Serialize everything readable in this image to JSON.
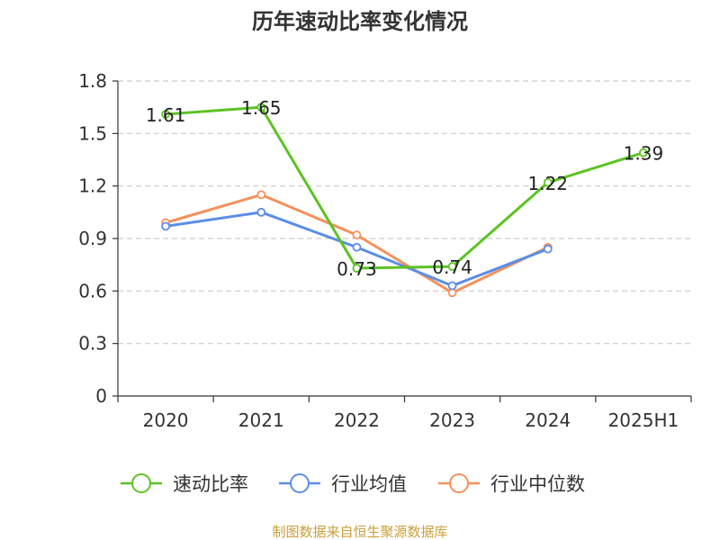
{
  "chart_data": {
    "type": "line",
    "title": "历年速动比率变化情况",
    "categories": [
      "2020",
      "2021",
      "2022",
      "2023",
      "2024",
      "2025H1"
    ],
    "ylim": [
      0,
      1.8
    ],
    "yticks": [
      "0",
      "0.3",
      "0.6",
      "0.9",
      "1.2",
      "1.5",
      "1.8"
    ],
    "grid": true,
    "legend_position": "bottom",
    "series": [
      {
        "name": "速动比率",
        "color": "#5cc323",
        "values": [
          1.61,
          1.65,
          0.73,
          0.74,
          1.22,
          1.39
        ],
        "labels": [
          "1.61",
          "1.65",
          "0.73",
          "0.74",
          "1.22",
          "1.39"
        ]
      },
      {
        "name": "行业均值",
        "color": "#5b8ee6",
        "values": [
          0.97,
          1.05,
          0.85,
          0.63,
          0.84,
          null
        ]
      },
      {
        "name": "行业中位数",
        "color": "#f5915b",
        "values": [
          0.99,
          1.15,
          0.92,
          0.59,
          0.85,
          null
        ]
      }
    ]
  },
  "source": {
    "text": "制图数据来自恒生聚源数据库",
    "color": "#c8a03c"
  }
}
